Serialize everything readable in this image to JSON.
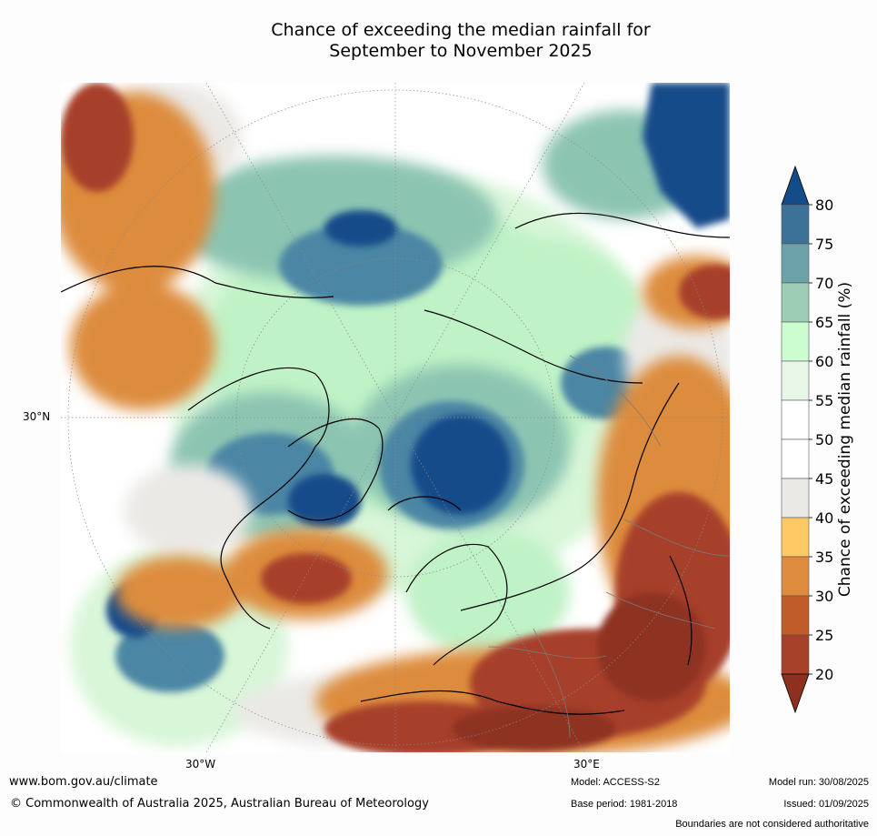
{
  "title_line1": "Chance of exceeding the median rainfall for",
  "title_line2": "September to November 2025",
  "lat_label": "30°N",
  "lon_labels": [
    "30°W",
    "30°E"
  ],
  "colorbar": {
    "label": "Chance of exceeding median rainfall (%)",
    "ticks": [
      "80",
      "75",
      "70",
      "65",
      "60",
      "55",
      "50",
      "45",
      "40",
      "35",
      "30",
      "25",
      "20"
    ],
    "colors": [
      "#144c8a",
      "#3c7198",
      "#6ba3a8",
      "#9ecdb5",
      "#ccfdd0",
      "#e8f6e8",
      "#ffffff",
      "#ffffff",
      "#ebe9e6",
      "#fec865",
      "#dd8c3e",
      "#c05b2a",
      "#a7412a",
      "#8e3020"
    ]
  },
  "footer": {
    "url": "www.bom.gov.au/climate",
    "copyright": "© Commonwealth of Australia 2025, Australian Bureau of Meteorology",
    "model": "Model: ACCESS-S2",
    "base_period": "Base period: 1981-2018",
    "model_run": "Model run: 30/08/2025",
    "issued": "Issued: 01/09/2025",
    "disclaimer": "Boundaries are not considered authoritative"
  }
}
